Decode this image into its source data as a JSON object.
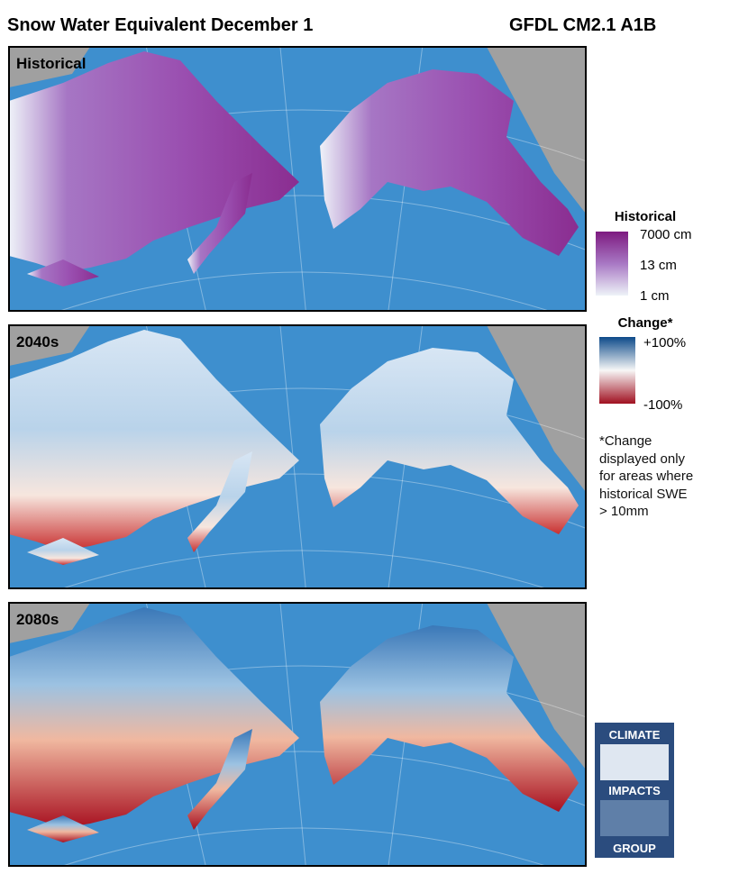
{
  "header": {
    "title": "Snow Water Equivalent December 1",
    "model": "GFDL CM2.1 A1B"
  },
  "panels": [
    {
      "label": "Historical"
    },
    {
      "label": "2040s"
    },
    {
      "label": "2080s"
    }
  ],
  "legend": {
    "historical": {
      "title": "Historical",
      "labels": [
        "7000 cm",
        "13 cm",
        "1 cm"
      ]
    },
    "change": {
      "title": "Change*",
      "labels": [
        "+100%",
        "-100%"
      ]
    }
  },
  "note": "*Change displayed only for areas where historical SWE > 10mm",
  "logo": {
    "lines": [
      "CLIMATE",
      "IMPACTS",
      "GROUP"
    ]
  }
}
